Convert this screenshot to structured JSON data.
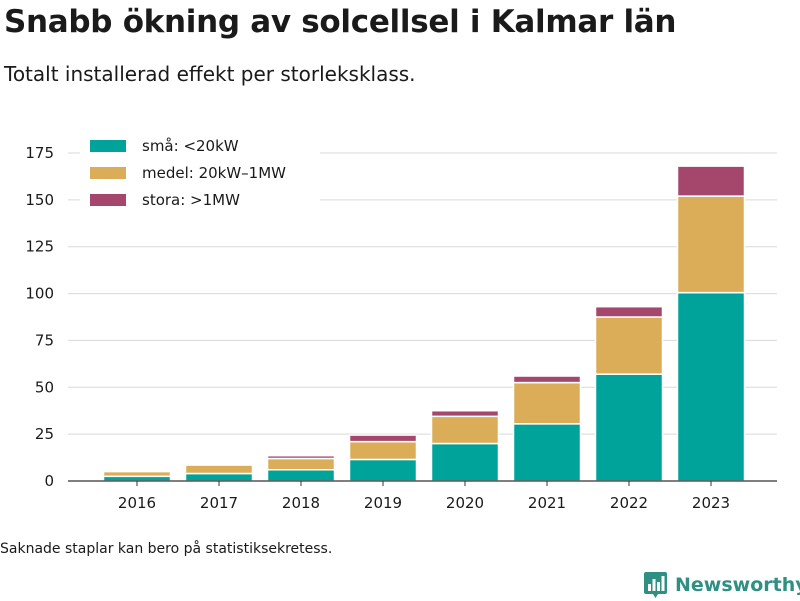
{
  "header": {
    "title": "Snabb ökning av solcellsel i Kalmar län",
    "subtitle": "Totalt installerad effekt per storleksklass."
  },
  "footer": {
    "note": "Saknade staplar kan bero på statistiksekretess.",
    "brand": "Newsworthy",
    "brand_icon": "bar-chart-logo-icon",
    "brand_color": "#2f8f83"
  },
  "chart_data": {
    "type": "bar",
    "stacked": true,
    "title": "Snabb ökning av solcellsel i Kalmar län",
    "subtitle": "Totalt installerad effekt per storleksklass.",
    "xlabel": "",
    "ylabel": "",
    "categories": [
      "2016",
      "2017",
      "2018",
      "2019",
      "2020",
      "2021",
      "2022",
      "2023"
    ],
    "series": [
      {
        "name": "små: <20kW",
        "color": "#00a39a",
        "values": [
          2.5,
          4,
          6,
          11.5,
          20,
          30.5,
          57,
          100.5
        ]
      },
      {
        "name": "medel: 20kW–1MW",
        "color": "#dbad59",
        "values": [
          2.5,
          4.5,
          6,
          9.5,
          14.5,
          22,
          30.5,
          51.5
        ]
      },
      {
        "name": "stora: >1MW",
        "color": "#a5466c",
        "values": [
          0,
          0,
          1.5,
          3.5,
          3,
          3.5,
          5.5,
          16
        ]
      }
    ],
    "ylim": [
      0,
      175
    ],
    "yticks": [
      0,
      25,
      50,
      75,
      100,
      125,
      150,
      175
    ],
    "grid": true,
    "legend_position": "top-left"
  }
}
